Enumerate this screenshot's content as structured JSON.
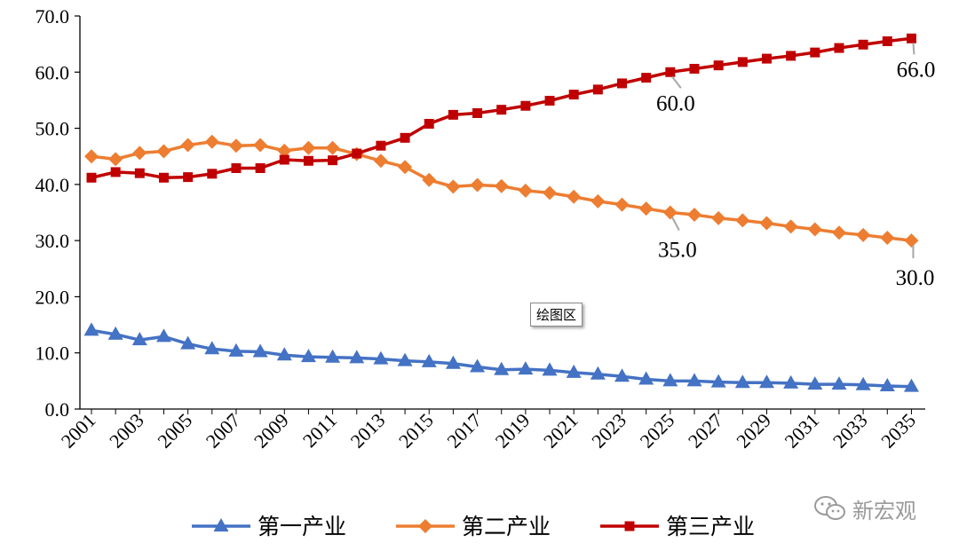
{
  "chart_data": {
    "type": "line",
    "title": "",
    "xlabel": "",
    "ylabel": "",
    "ylim": [
      0,
      70
    ],
    "y_tick_labels": [
      "0.0",
      "10.0",
      "20.0",
      "30.0",
      "40.0",
      "50.0",
      "60.0",
      "70.0"
    ],
    "x_tick_labels": [
      "2001",
      "2003",
      "2005",
      "2007",
      "2009",
      "2011",
      "2013",
      "2015",
      "2017",
      "2019",
      "2021",
      "2023",
      "2025",
      "2027",
      "2029",
      "2031",
      "2033",
      "2035"
    ],
    "grid": false,
    "legend_position": "bottom",
    "x": [
      2001,
      2002,
      2003,
      2004,
      2005,
      2006,
      2007,
      2008,
      2009,
      2010,
      2011,
      2012,
      2013,
      2014,
      2015,
      2016,
      2017,
      2018,
      2019,
      2020,
      2021,
      2022,
      2023,
      2024,
      2025,
      2026,
      2027,
      2028,
      2029,
      2030,
      2031,
      2032,
      2033,
      2034,
      2035
    ],
    "series": [
      {
        "name": "第一产业",
        "color": "#4472C4",
        "marker": "triangle",
        "values": [
          14.0,
          13.3,
          12.3,
          12.9,
          11.6,
          10.7,
          10.3,
          10.2,
          9.6,
          9.3,
          9.2,
          9.1,
          8.9,
          8.6,
          8.4,
          8.1,
          7.5,
          7.0,
          7.1,
          6.9,
          6.5,
          6.2,
          5.8,
          5.3,
          5.0,
          5.0,
          4.8,
          4.7,
          4.7,
          4.6,
          4.4,
          4.4,
          4.3,
          4.1,
          4.0
        ]
      },
      {
        "name": "第二产业",
        "color": "#ED7D31",
        "marker": "diamond",
        "values": [
          45.0,
          44.5,
          45.6,
          45.9,
          47.0,
          47.6,
          46.9,
          47.0,
          46.0,
          46.5,
          46.5,
          45.4,
          44.2,
          43.1,
          40.8,
          39.6,
          39.9,
          39.7,
          38.9,
          38.5,
          37.8,
          37.0,
          36.4,
          35.7,
          35.0,
          34.6,
          34.0,
          33.6,
          33.1,
          32.5,
          32.0,
          31.4,
          31.0,
          30.5,
          30.0
        ]
      },
      {
        "name": "第三产业",
        "color": "#C00000",
        "marker": "square",
        "values": [
          41.2,
          42.2,
          42.0,
          41.2,
          41.3,
          41.9,
          42.9,
          42.9,
          44.4,
          44.2,
          44.3,
          45.5,
          46.9,
          48.3,
          50.8,
          52.4,
          52.7,
          53.3,
          54.0,
          54.9,
          56.0,
          56.9,
          58.0,
          59.0,
          60.0,
          60.6,
          61.2,
          61.8,
          62.4,
          62.9,
          63.5,
          64.3,
          64.9,
          65.5,
          66.0
        ]
      }
    ],
    "annotations": [
      {
        "series": 2,
        "x": 2025,
        "text": "60.0"
      },
      {
        "series": 2,
        "x": 2035,
        "text": "66.0"
      },
      {
        "series": 1,
        "x": 2025,
        "text": "35.0"
      },
      {
        "series": 1,
        "x": 2035,
        "text": "30.0"
      }
    ]
  },
  "tooltip_text": "绘图区",
  "watermark": {
    "text": "新宏观",
    "icon": "wechat-icon"
  }
}
